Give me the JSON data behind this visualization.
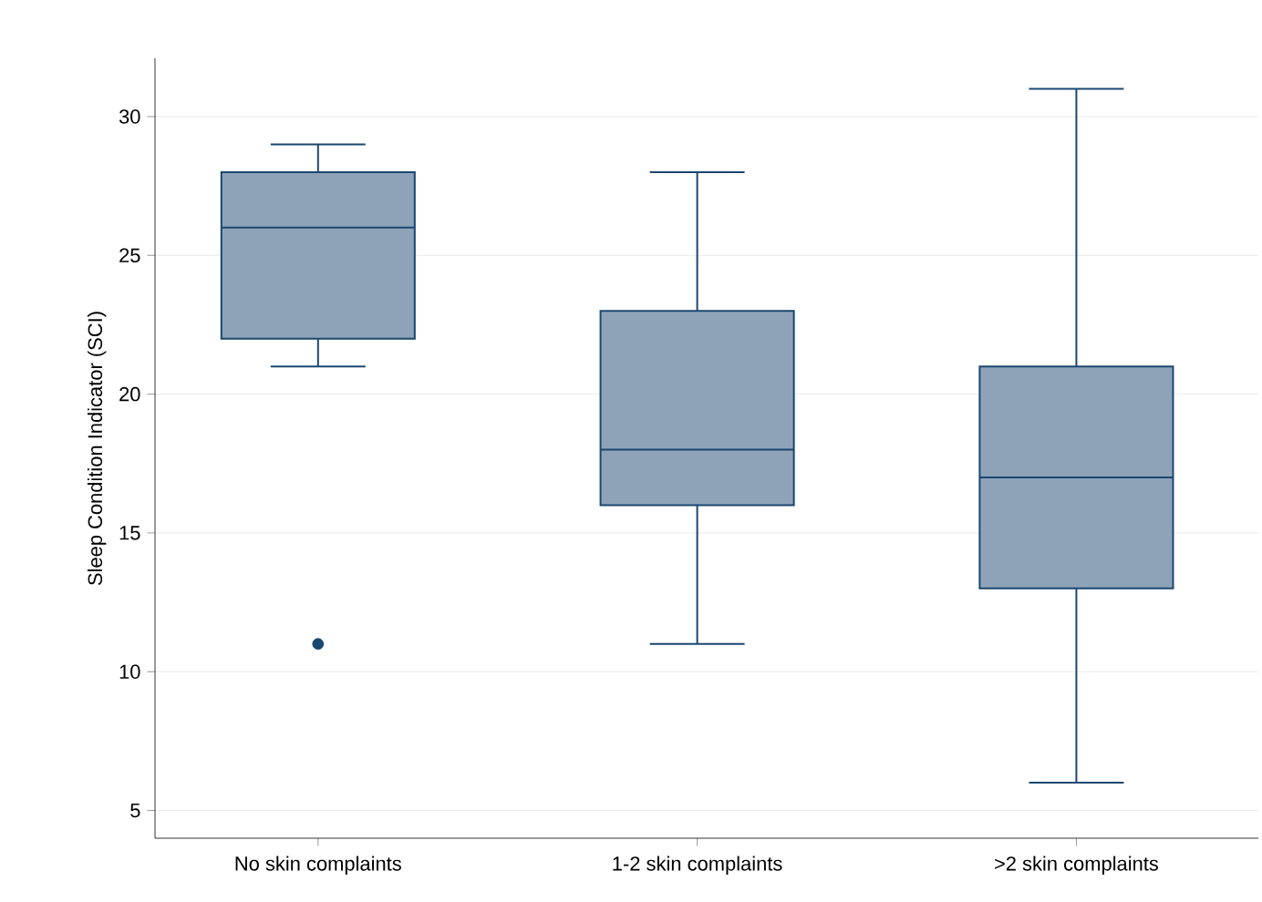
{
  "chart_data": {
    "type": "box",
    "ylabel": "Sleep Condition Indicator (SCI)",
    "categories": [
      "No skin complaints",
      "1-2 skin complaints",
      ">2 skin complaints"
    ],
    "boxes": [
      {
        "low": 21,
        "q1": 22,
        "median": 26,
        "q3": 28,
        "high": 29,
        "outliers": [
          11
        ]
      },
      {
        "low": 11,
        "q1": 16,
        "median": 18,
        "q3": 23,
        "high": 28
      },
      {
        "low": 6,
        "q1": 13,
        "median": 17,
        "q3": 21,
        "high": 31
      }
    ],
    "color": "#8fa3b8",
    "ylim": [
      4,
      32.1
    ],
    "yticks": [
      5,
      10,
      15,
      20,
      25,
      30
    ],
    "grid": "y"
  }
}
